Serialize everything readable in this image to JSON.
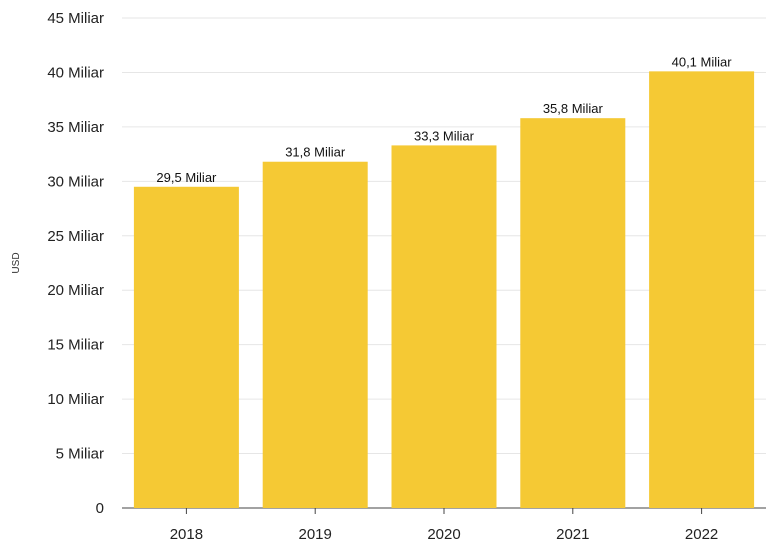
{
  "chart_data": {
    "type": "bar",
    "categories": [
      "2018",
      "2019",
      "2020",
      "2021",
      "2022"
    ],
    "values": [
      29.5,
      31.8,
      33.3,
      35.8,
      40.1
    ],
    "data_labels": [
      "29,5 Miliar",
      "31,8 Miliar",
      "33,3 Miliar",
      "35,8 Miliar",
      "40,1 Miliar"
    ],
    "title": "",
    "xlabel": "",
    "ylabel": "USD",
    "ylim": [
      0,
      45
    ],
    "yticks": [
      0,
      5,
      10,
      15,
      20,
      25,
      30,
      35,
      40,
      45
    ],
    "ytick_labels": [
      "0",
      "5 Miliar",
      "10 Miliar",
      "15 Miliar",
      "20 Miliar",
      "25 Miliar",
      "30 Miliar",
      "35 Miliar",
      "40 Miliar",
      "45 Miliar"
    ],
    "grid": true,
    "legend": "none",
    "bar_color": "#f5c934"
  }
}
